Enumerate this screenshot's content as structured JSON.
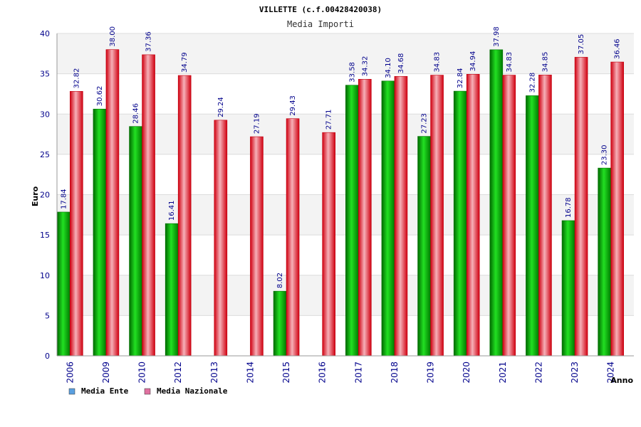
{
  "chart_data": {
    "type": "bar",
    "title": "VILLETTE (c.f.00428420038)",
    "subtitle": "Media Importi",
    "xlabel": "Anno",
    "ylabel": "Euro",
    "ylim": [
      0,
      40
    ],
    "yticks": [
      0,
      5,
      10,
      15,
      20,
      25,
      30,
      35,
      40
    ],
    "grid": true,
    "legend_position": "bottom-left",
    "categories": [
      "2006",
      "2009",
      "2010",
      "2012",
      "2013",
      "2014",
      "2015",
      "2016",
      "2017",
      "2018",
      "2019",
      "2020",
      "2021",
      "2022",
      "2023",
      "2024"
    ],
    "series": [
      {
        "name": "Media Ente",
        "color": "#00b000",
        "legend_color": "#5aa0e0",
        "values": [
          17.84,
          30.62,
          28.46,
          16.41,
          null,
          null,
          8.02,
          null,
          33.58,
          34.1,
          27.23,
          32.84,
          37.98,
          32.28,
          16.78,
          23.3
        ],
        "labels": [
          "17.84",
          "30.62",
          "28.46",
          "16.41",
          null,
          null,
          "8.02",
          null,
          "33.58",
          "34.10",
          "27.23",
          "32.84",
          "37.98",
          "32.28",
          "16.78",
          "23.30"
        ]
      },
      {
        "name": "Media Nazionale",
        "color": "#e8202a",
        "legend_color": "#e070a0",
        "values": [
          32.82,
          38.0,
          37.36,
          34.79,
          29.24,
          27.19,
          29.43,
          27.71,
          34.32,
          34.68,
          34.83,
          34.94,
          34.83,
          34.85,
          37.05,
          36.46
        ],
        "labels": [
          "32.82",
          "38.00",
          "37.36",
          "34.79",
          "29.24",
          "27.19",
          "29.43",
          "27.71",
          "34.32",
          "34.68",
          "34.83",
          "34.94",
          "34.83",
          "34.85",
          "37.05",
          "36.46"
        ]
      }
    ]
  }
}
